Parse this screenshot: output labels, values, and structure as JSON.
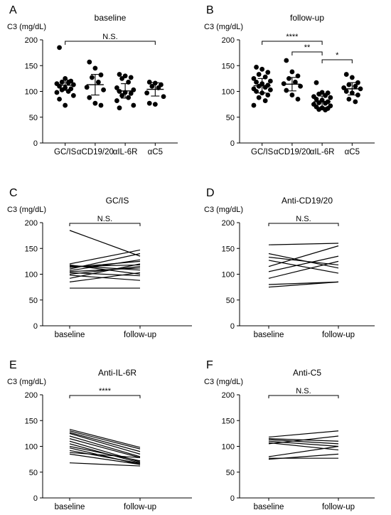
{
  "colors": {
    "ink": "#000000",
    "background": "#ffffff"
  },
  "chart_data": [
    {
      "panel": "A",
      "type": "scatter",
      "title": "baseline",
      "ylabel": "C3 (mg/dL)",
      "ylim": [
        0,
        200
      ],
      "yticks": [
        0,
        50,
        100,
        150,
        200
      ],
      "categories": [
        "GC/IS",
        "αCD19/20",
        "αIL-6R",
        "αC5"
      ],
      "values": [
        [
          185,
          125,
          120,
          118,
          117,
          115,
          113,
          110,
          107,
          105,
          103,
          100,
          98,
          92,
          85,
          73
        ],
        [
          157,
          145,
          132,
          127,
          118,
          108,
          103,
          88,
          77,
          73
        ],
        [
          133,
          130,
          127,
          125,
          118,
          107,
          103,
          100,
          98,
          96,
          92,
          88,
          82,
          73,
          68
        ],
        [
          118,
          116,
          113,
          110,
          107,
          97,
          90,
          77,
          75
        ]
      ],
      "mean": [
        112,
        113,
        101,
        104
      ],
      "error": [
        10,
        20,
        14,
        13
      ],
      "brackets": [
        {
          "from": 0,
          "to": 3,
          "label": "N.S."
        }
      ]
    },
    {
      "panel": "B",
      "type": "scatter",
      "title": "follow-up",
      "ylabel": "C3 (mg/dL)",
      "ylim": [
        0,
        200
      ],
      "yticks": [
        0,
        50,
        100,
        150,
        200
      ],
      "categories": [
        "GC/IS",
        "αCD19/20",
        "αIL-6R",
        "αC5"
      ],
      "values": [
        [
          147,
          143,
          137,
          133,
          128,
          125,
          120,
          118,
          115,
          112,
          110,
          108,
          105,
          103,
          100,
          97,
          93,
          88,
          82,
          73
        ],
        [
          160,
          138,
          130,
          125,
          118,
          115,
          110,
          102,
          93,
          85
        ],
        [
          117,
          98,
          97,
          95,
          92,
          90,
          88,
          85,
          83,
          80,
          78,
          77,
          75,
          72,
          70,
          68,
          67,
          65,
          64
        ],
        [
          133,
          127,
          117,
          113,
          110,
          107,
          105,
          100,
          97,
          93,
          85,
          80
        ]
      ],
      "mean": [
        111,
        114,
        80,
        105
      ],
      "error": [
        14,
        13,
        11,
        12
      ],
      "brackets": [
        {
          "from": 0,
          "to": 2,
          "label": "****"
        },
        {
          "from": 1,
          "to": 2,
          "label": "**"
        },
        {
          "from": 2,
          "to": 3,
          "label": "*"
        }
      ]
    },
    {
      "panel": "C",
      "type": "line",
      "title": "GC/IS",
      "ylabel": "C3 (mg/dL)",
      "ylim": [
        0,
        200
      ],
      "yticks": [
        0,
        50,
        100,
        150,
        200
      ],
      "x": [
        "baseline",
        "follow-up"
      ],
      "series": [
        {
          "values": [
            185,
            135
          ]
        },
        {
          "values": [
            120,
            147
          ]
        },
        {
          "values": [
            118,
            100
          ]
        },
        {
          "values": [
            117,
            108
          ]
        },
        {
          "values": [
            115,
            118
          ]
        },
        {
          "values": [
            113,
            125
          ]
        },
        {
          "values": [
            110,
            140
          ]
        },
        {
          "values": [
            107,
            128
          ]
        },
        {
          "values": [
            105,
            112
          ]
        },
        {
          "values": [
            103,
            97
          ]
        },
        {
          "values": [
            100,
            115
          ]
        },
        {
          "values": [
            98,
            88
          ]
        },
        {
          "values": [
            92,
            120
          ]
        },
        {
          "values": [
            85,
            103
          ]
        },
        {
          "values": [
            73,
            73
          ]
        }
      ],
      "brackets": [
        {
          "from": 0,
          "to": 1,
          "label": "N.S."
        }
      ]
    },
    {
      "panel": "D",
      "type": "line",
      "title": "Anti-CD19/20",
      "ylabel": "C3 (mg/dL)",
      "ylim": [
        0,
        200
      ],
      "yticks": [
        0,
        50,
        100,
        150,
        200
      ],
      "x": [
        "baseline",
        "follow-up"
      ],
      "series": [
        {
          "values": [
            157,
            160
          ]
        },
        {
          "values": [
            140,
            112
          ]
        },
        {
          "values": [
            133,
            118
          ]
        },
        {
          "values": [
            127,
            102
          ]
        },
        {
          "values": [
            115,
            155
          ]
        },
        {
          "values": [
            105,
            135
          ]
        },
        {
          "values": [
            92,
            125
          ]
        },
        {
          "values": [
            80,
            85
          ]
        },
        {
          "values": [
            75,
            85
          ]
        }
      ],
      "brackets": [
        {
          "from": 0,
          "to": 1,
          "label": "N.S."
        }
      ]
    },
    {
      "panel": "E",
      "type": "line",
      "title": "Anti-IL-6R",
      "ylabel": "C3 (mg/dL)",
      "ylim": [
        0,
        200
      ],
      "yticks": [
        0,
        50,
        100,
        150,
        200
      ],
      "x": [
        "baseline",
        "follow-up"
      ],
      "series": [
        {
          "values": [
            133,
            98
          ]
        },
        {
          "values": [
            130,
            95
          ]
        },
        {
          "values": [
            127,
            90
          ]
        },
        {
          "values": [
            125,
            85
          ]
        },
        {
          "values": [
            120,
            80
          ]
        },
        {
          "values": [
            115,
            78
          ]
        },
        {
          "values": [
            110,
            70
          ]
        },
        {
          "values": [
            105,
            68
          ]
        },
        {
          "values": [
            100,
            72
          ]
        },
        {
          "values": [
            97,
            65
          ]
        },
        {
          "values": [
            92,
            67
          ]
        },
        {
          "values": [
            88,
            78
          ]
        },
        {
          "values": [
            85,
            65
          ]
        },
        {
          "values": [
            68,
            62
          ]
        }
      ],
      "brackets": [
        {
          "from": 0,
          "to": 1,
          "label": "****"
        }
      ]
    },
    {
      "panel": "F",
      "type": "line",
      "title": "Anti-C5",
      "ylabel": "C3 (mg/dL)",
      "ylim": [
        0,
        200
      ],
      "yticks": [
        0,
        50,
        100,
        150,
        200
      ],
      "x": [
        "baseline",
        "follow-up"
      ],
      "series": [
        {
          "values": [
            118,
            130
          ]
        },
        {
          "values": [
            115,
            110
          ]
        },
        {
          "values": [
            113,
            105
          ]
        },
        {
          "values": [
            110,
            100
          ]
        },
        {
          "values": [
            107,
            93
          ]
        },
        {
          "values": [
            105,
            120
          ]
        },
        {
          "values": [
            80,
            100
          ]
        },
        {
          "values": [
            77,
            77
          ]
        },
        {
          "values": [
            75,
            85
          ]
        }
      ],
      "brackets": [
        {
          "from": 0,
          "to": 1,
          "label": "N.S."
        }
      ]
    }
  ]
}
